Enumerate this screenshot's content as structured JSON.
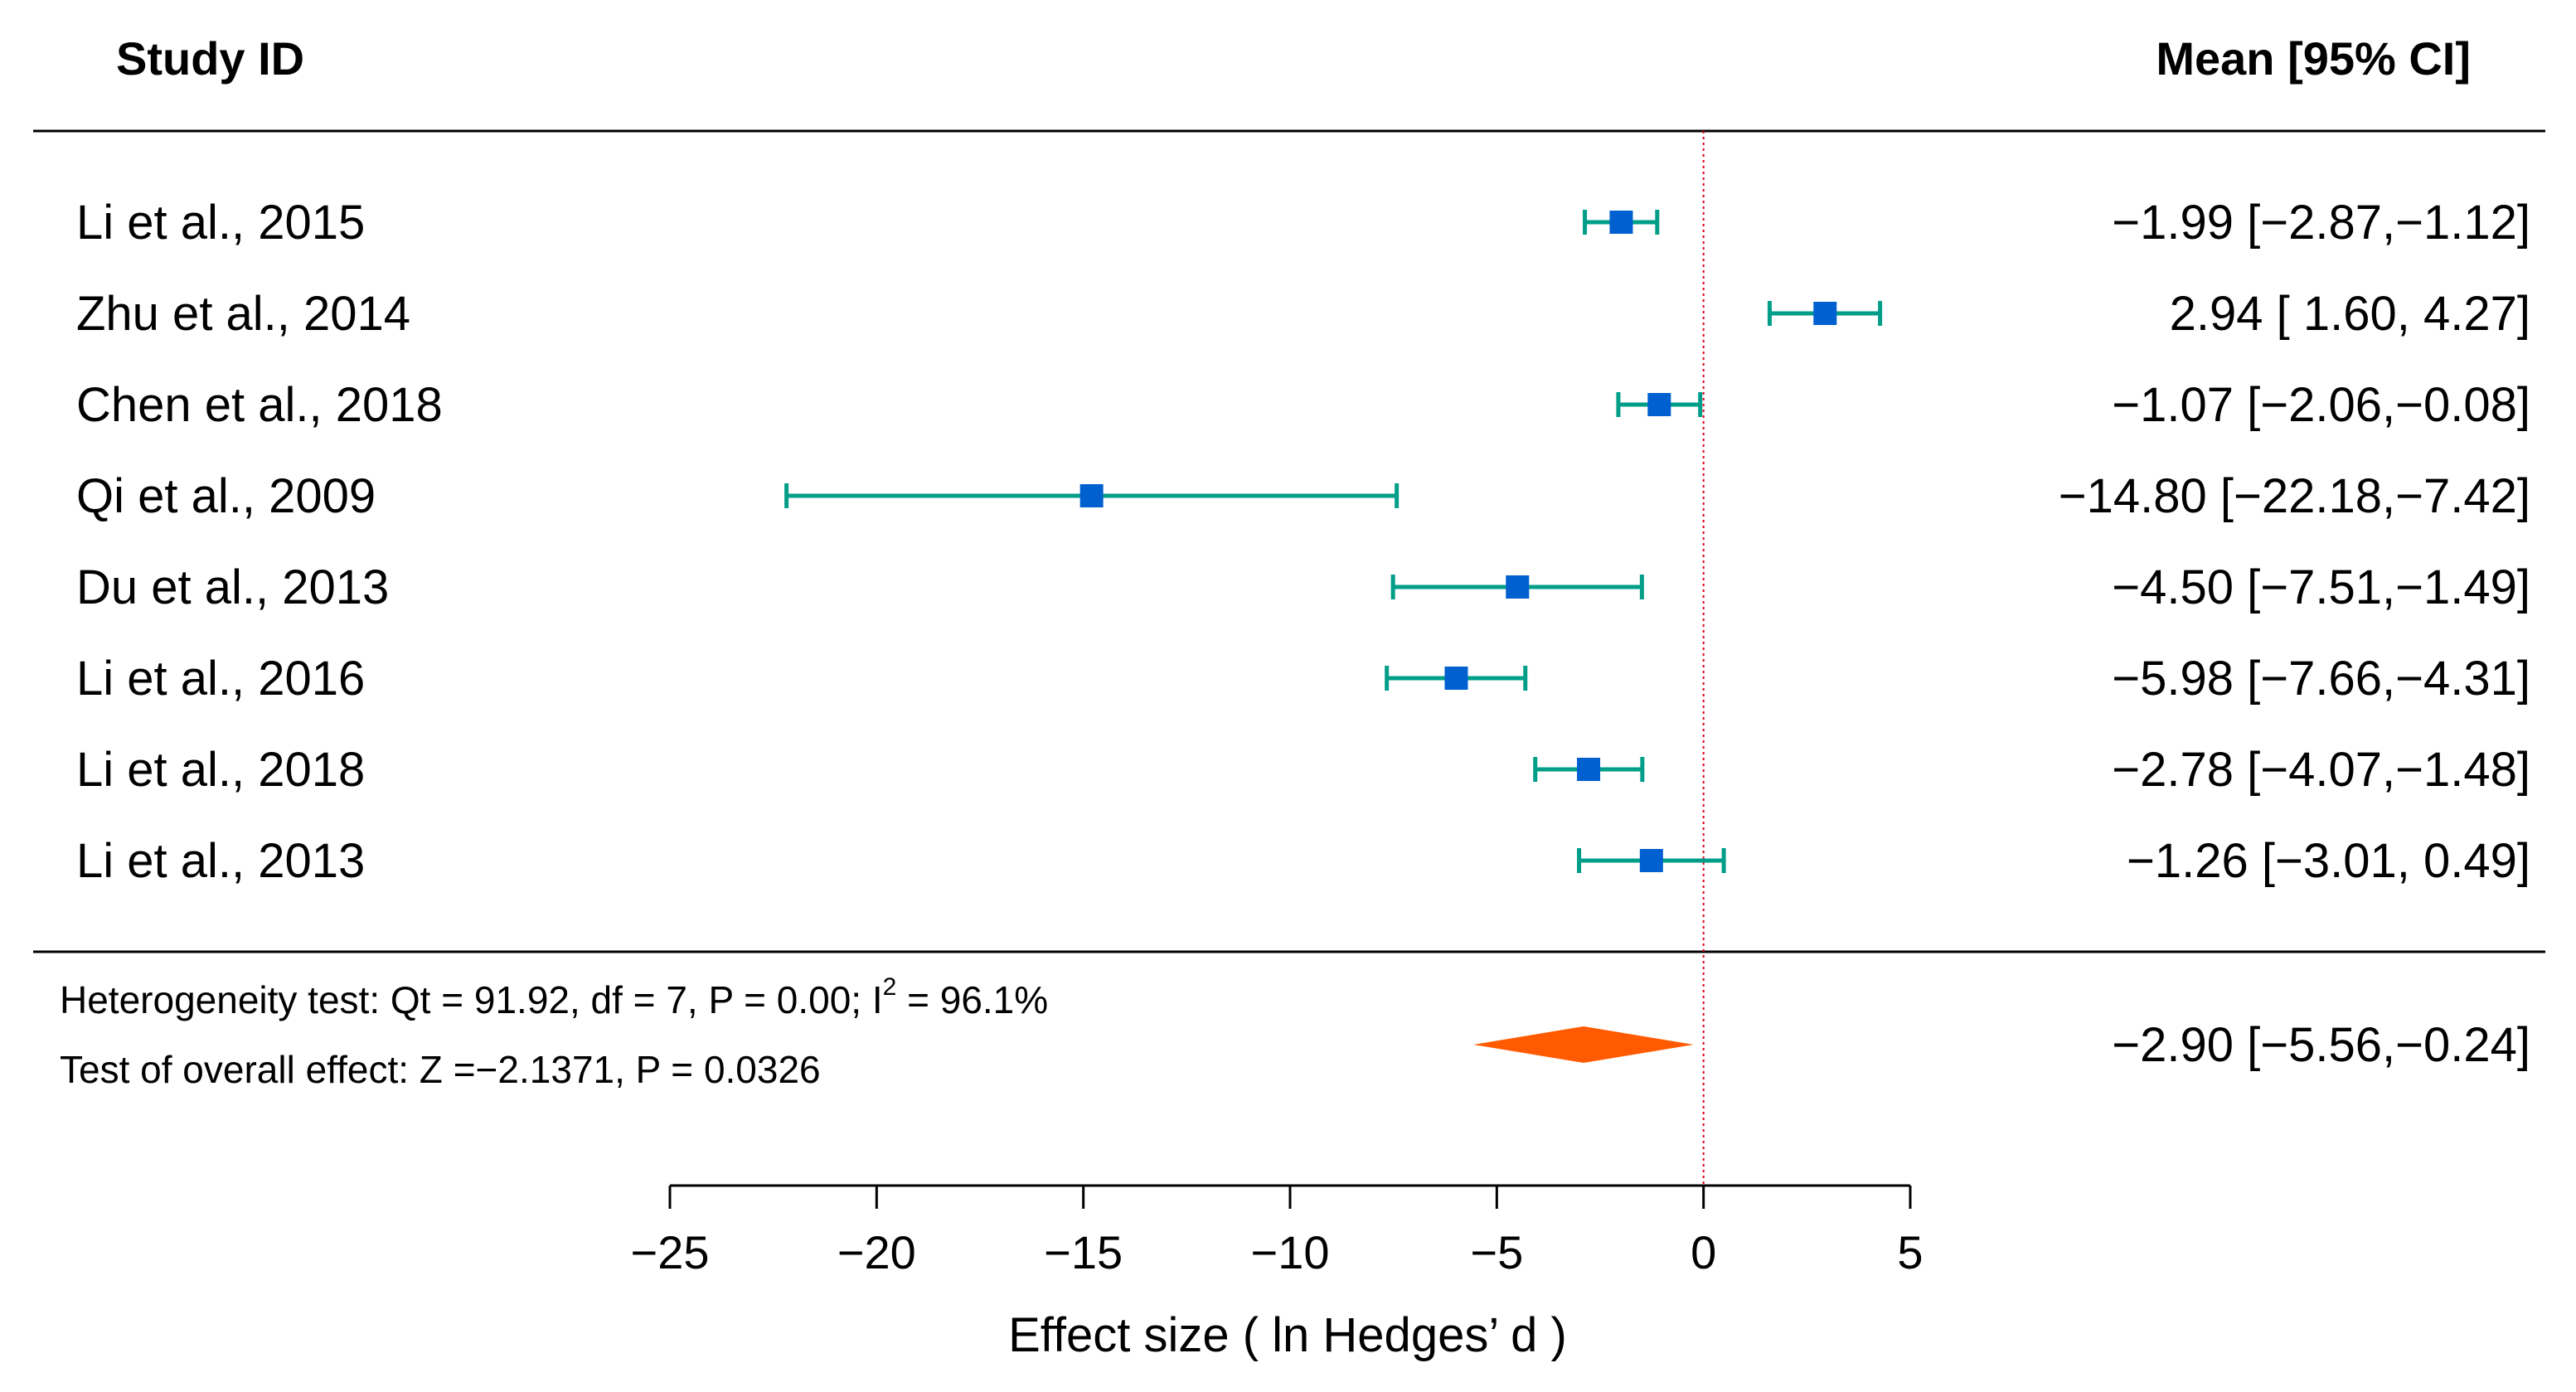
{
  "chart_data": {
    "type": "forest",
    "headers": {
      "study": "Study ID",
      "estimate": "Mean [95% CI]"
    },
    "studies": [
      {
        "label": "Li et al., 2015",
        "mean": -1.99,
        "lower": -2.87,
        "upper": -1.12,
        "ci_text": "−1.99 [−2.87,−1.12]"
      },
      {
        "label": "Zhu et al., 2014",
        "mean": 2.94,
        "lower": 1.6,
        "upper": 4.27,
        "ci_text": "2.94 [  1.60,  4.27]"
      },
      {
        "label": "Chen et al., 2018",
        "mean": -1.07,
        "lower": -2.06,
        "upper": -0.08,
        "ci_text": "−1.07 [−2.06,−0.08]"
      },
      {
        "label": "Qi et al., 2009",
        "mean": -14.8,
        "lower": -22.18,
        "upper": -7.42,
        "ci_text": "−14.80 [−22.18,−7.42]"
      },
      {
        "label": "Du et al., 2013",
        "mean": -4.5,
        "lower": -7.51,
        "upper": -1.49,
        "ci_text": "−4.50 [−7.51,−1.49]"
      },
      {
        "label": "Li et al., 2016",
        "mean": -5.98,
        "lower": -7.66,
        "upper": -4.31,
        "ci_text": "−5.98 [−7.66,−4.31]"
      },
      {
        "label": "Li et al., 2018",
        "mean": -2.78,
        "lower": -4.07,
        "upper": -1.48,
        "ci_text": "−2.78 [−4.07,−1.48]"
      },
      {
        "label": "Li et al., 2013",
        "mean": -1.26,
        "lower": -3.01,
        "upper": 0.49,
        "ci_text": "−1.26 [−3.01,  0.49]"
      }
    ],
    "overall": {
      "mean": -2.9,
      "lower": -5.56,
      "upper": -0.24,
      "ci_text": "−2.90 [−5.56,−0.24]"
    },
    "heterogeneity_text": "Heterogeneity test: Qt = 91.92, df = 7, P = 0.00; I",
    "heterogeneity_sup": "2",
    "heterogeneity_tail": " = 96.1%",
    "overall_test_text": "Test of overall effect: Z =−2.1371, P = 0.0326",
    "xlabel": "Effect size ( ln Hedges’ d )",
    "xlim": [
      -25,
      5
    ],
    "xticks": [
      -25,
      -20,
      -15,
      -10,
      -5,
      0,
      5
    ],
    "xtick_labels": [
      "−25",
      "−20",
      "−15",
      "−10",
      "−5",
      "0",
      "5"
    ],
    "reference_line": 0,
    "colors": {
      "ci_line": "#009E88",
      "point": "#0060D0",
      "diamond": "#FF5A00",
      "reference": "#E0001A",
      "rule": "#000000"
    }
  }
}
